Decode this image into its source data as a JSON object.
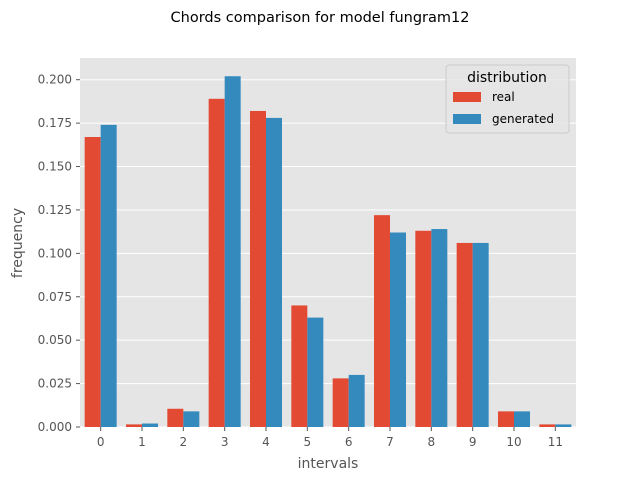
{
  "chart_data": {
    "type": "bar",
    "title": "Chords comparison for model fungram12",
    "xlabel": "intervals",
    "ylabel": "frequency",
    "categories": [
      "0",
      "1",
      "2",
      "3",
      "4",
      "5",
      "6",
      "7",
      "8",
      "9",
      "10",
      "11"
    ],
    "series": [
      {
        "name": "real",
        "color": "#E24A33",
        "values": [
          0.167,
          0.0015,
          0.0105,
          0.189,
          0.182,
          0.07,
          0.028,
          0.122,
          0.113,
          0.106,
          0.009,
          0.0015
        ]
      },
      {
        "name": "generated",
        "color": "#348ABD",
        "values": [
          0.174,
          0.002,
          0.009,
          0.202,
          0.178,
          0.063,
          0.03,
          0.112,
          0.114,
          0.106,
          0.009,
          0.0015
        ]
      }
    ],
    "ylim": [
      0,
      0.2125
    ],
    "yticks": [
      "0.000",
      "0.025",
      "0.050",
      "0.075",
      "0.100",
      "0.125",
      "0.150",
      "0.175",
      "0.200"
    ],
    "legend": {
      "title": "distribution",
      "position": "top-right"
    },
    "grid": true,
    "style": {
      "plot_background": "#E5E5E5",
      "grid_color": "#FFFFFF",
      "text_color": "#555555"
    }
  }
}
